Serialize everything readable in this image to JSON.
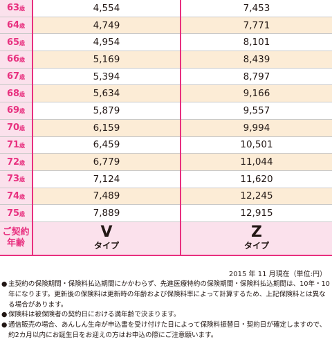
{
  "table": {
    "age_unit": "歳",
    "rows": [
      {
        "age": "63",
        "v": "4,554",
        "z": "7,453"
      },
      {
        "age": "64",
        "v": "4,749",
        "z": "7,771"
      },
      {
        "age": "65",
        "v": "4,954",
        "z": "8,101"
      },
      {
        "age": "66",
        "v": "5,169",
        "z": "8,439"
      },
      {
        "age": "67",
        "v": "5,394",
        "z": "8,797"
      },
      {
        "age": "68",
        "v": "5,634",
        "z": "9,166"
      },
      {
        "age": "69",
        "v": "5,879",
        "z": "9,557"
      },
      {
        "age": "70",
        "v": "6,159",
        "z": "9,994"
      },
      {
        "age": "71",
        "v": "6,459",
        "z": "10,501"
      },
      {
        "age": "72",
        "v": "6,779",
        "z": "11,044"
      },
      {
        "age": "73",
        "v": "7,124",
        "z": "11,620"
      },
      {
        "age": "74",
        "v": "7,489",
        "z": "12,245"
      },
      {
        "age": "75",
        "v": "7,889",
        "z": "12,915"
      }
    ],
    "footer": {
      "age_label_line1": "ご契約",
      "age_label_line2": "年齢",
      "v_letter": "V",
      "v_word": "タイプ",
      "z_letter": "Z",
      "z_word": "タイプ"
    }
  },
  "as_of": "2015 年 11 月現在（単位:円）",
  "notes": [
    "主契約の保険期間・保険料払込期間にかかわらず、先進医療特約の保険期間・保険料払込期間は、10年・10年になります。更新後の保険料は更新時の年齢および保険料率によって計算するため、上記保険料とは異なる場合があります。",
    "保険料は被保険者の契約日における満年齢で決まります。",
    "通信販売の場合、あんしん生命が申込書を受け付けた日によって保険料振替日・契約日が確定しますので、約2カ月以内にお誕生日をお迎えの方はお申込の際にご注意願います。"
  ],
  "colors": {
    "accent": "#e8307f",
    "age_bg": "#fbe1ec",
    "shade": "#fcecd6"
  }
}
